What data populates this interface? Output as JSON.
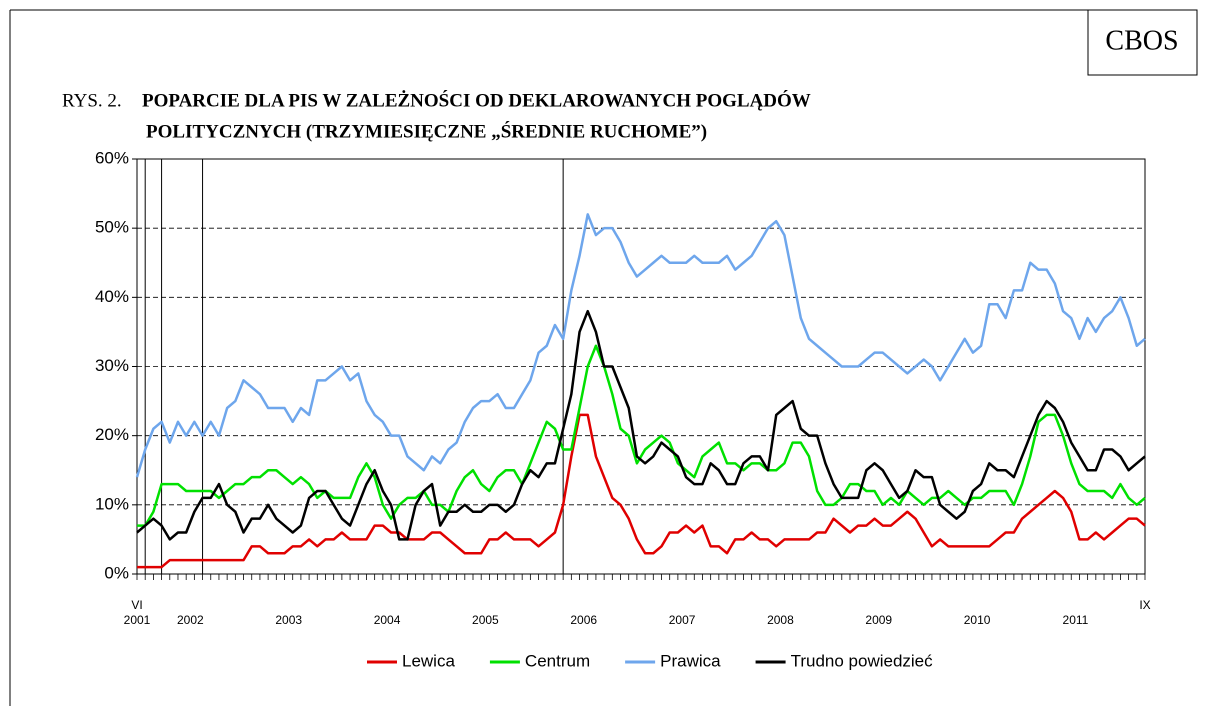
{
  "source": "CBOS",
  "chart_data": {
    "type": "line",
    "figure_label": "RYS. 2.",
    "title_lines": [
      "POPARCIE DLA PIS W ZALEŻNOŚCI OD DEKLAROWANYCH POGLĄDÓW",
      "POLITYCZNYCH (TRZYMIESIĘCZNE „ŚREDNIE RUCHOME”)"
    ],
    "categories": [
      "2001",
      null,
      null,
      null,
      null,
      null,
      null,
      "2002",
      null,
      null,
      null,
      null,
      null,
      null,
      null,
      null,
      null,
      null,
      null,
      "2003",
      null,
      null,
      null,
      null,
      null,
      null,
      null,
      null,
      null,
      null,
      null,
      "2004",
      null,
      null,
      null,
      null,
      null,
      null,
      null,
      null,
      null,
      null,
      null,
      "2005",
      null,
      null,
      null,
      null,
      null,
      null,
      null,
      null,
      null,
      null,
      null,
      "2006",
      null,
      null,
      null,
      null,
      null,
      null,
      null,
      null,
      null,
      null,
      null,
      "2007",
      null,
      null,
      null,
      null,
      null,
      null,
      null,
      null,
      null,
      null,
      null,
      "2008",
      null,
      null,
      null,
      null,
      null,
      null,
      null,
      null,
      null,
      null,
      null,
      "2009",
      null,
      null,
      null,
      null,
      null,
      null,
      null,
      null,
      null,
      null,
      null,
      "2010",
      null,
      null,
      null,
      null,
      null,
      null,
      null,
      null,
      null,
      null,
      null,
      "2011",
      null,
      null,
      null,
      null,
      null,
      null,
      null,
      null
    ],
    "months": [
      "VI",
      null,
      null,
      null,
      null,
      null,
      null,
      null,
      null,
      null,
      null,
      null,
      null,
      null,
      null,
      null,
      null,
      null,
      null,
      null,
      null,
      null,
      null,
      null,
      null,
      null,
      null,
      null,
      null,
      null,
      null,
      null,
      null,
      null,
      null,
      null,
      null,
      null,
      null,
      null,
      null,
      null,
      null,
      null,
      null,
      null,
      null,
      null,
      null,
      null,
      null,
      null,
      null,
      null,
      null,
      null,
      null,
      null,
      null,
      null,
      null,
      null,
      null,
      null,
      null,
      null,
      null,
      null,
      null,
      null,
      null,
      null,
      null,
      null,
      null,
      null,
      null,
      null,
      null,
      null,
      null,
      null,
      null,
      null,
      null,
      null,
      null,
      null,
      null,
      null,
      null,
      null,
      null,
      null,
      null,
      null,
      null,
      null,
      null,
      null,
      null,
      null,
      null,
      null,
      null,
      null,
      null,
      null,
      null,
      null,
      null,
      null,
      null,
      null,
      null,
      null,
      null,
      null,
      null,
      null,
      null,
      null,
      null,
      "IX"
    ],
    "event_lines": [
      0,
      1,
      3,
      8,
      52
    ],
    "ylim": [
      0,
      60
    ],
    "yticks": [
      {
        "value": 0,
        "label": "0%"
      },
      {
        "value": 10,
        "label": "10%"
      },
      {
        "value": 20,
        "label": "20%"
      },
      {
        "value": 30,
        "label": "30%"
      },
      {
        "value": 40,
        "label": "40%"
      },
      {
        "value": 50,
        "label": "50%"
      },
      {
        "value": 60,
        "label": "60%"
      }
    ],
    "grid": true,
    "series": [
      {
        "name": "Lewica",
        "color": "#e00000",
        "values": [
          1,
          1,
          1,
          1,
          2,
          2,
          2,
          2,
          2,
          2,
          2,
          2,
          2,
          2,
          4,
          4,
          3,
          3,
          3,
          4,
          4,
          5,
          4,
          5,
          5,
          6,
          5,
          5,
          5,
          7,
          7,
          6,
          6,
          5,
          5,
          5,
          6,
          6,
          5,
          4,
          3,
          3,
          3,
          5,
          5,
          6,
          5,
          5,
          5,
          4,
          5,
          6,
          10,
          17,
          23,
          23,
          17,
          14,
          11,
          10,
          8,
          5,
          3,
          3,
          4,
          6,
          6,
          7,
          6,
          7,
          4,
          4,
          3,
          5,
          5,
          6,
          5,
          5,
          4,
          5,
          5,
          5,
          5,
          6,
          6,
          8,
          7,
          6,
          7,
          7,
          8,
          7,
          7,
          8,
          9,
          8,
          6,
          4,
          5,
          4,
          4,
          4,
          4,
          4,
          4,
          5,
          6,
          6,
          8,
          9,
          10,
          11,
          12,
          11,
          9,
          5,
          5,
          6,
          5,
          6,
          7,
          8,
          8,
          7
        ]
      },
      {
        "name": "Centrum",
        "color": "#00e000",
        "values": [
          7,
          7,
          9,
          13,
          13,
          13,
          12,
          12,
          12,
          12,
          11,
          12,
          13,
          13,
          14,
          14,
          15,
          15,
          14,
          13,
          14,
          13,
          11,
          12,
          11,
          11,
          11,
          14,
          16,
          14,
          10,
          8,
          10,
          11,
          11,
          12,
          10,
          10,
          9,
          12,
          14,
          15,
          13,
          12,
          14,
          15,
          15,
          13,
          16,
          19,
          22,
          21,
          18,
          18,
          24,
          30,
          33,
          30,
          26,
          21,
          20,
          16,
          18,
          19,
          20,
          19,
          16,
          15,
          14,
          17,
          18,
          19,
          16,
          16,
          15,
          16,
          16,
          15,
          15,
          16,
          19,
          19,
          17,
          12,
          10,
          10,
          11,
          13,
          13,
          12,
          12,
          10,
          11,
          10,
          12,
          11,
          10,
          11,
          11,
          12,
          11,
          10,
          11,
          11,
          12,
          12,
          12,
          10,
          13,
          17,
          22,
          23,
          23,
          20,
          16,
          13,
          12,
          12,
          12,
          11,
          13,
          11,
          10,
          11
        ]
      },
      {
        "name": "Prawica",
        "color": "#6ea6ec",
        "values": [
          14,
          18,
          21,
          22,
          19,
          22,
          20,
          22,
          20,
          22,
          20,
          24,
          25,
          28,
          27,
          26,
          24,
          24,
          24,
          22,
          24,
          23,
          28,
          28,
          29,
          30,
          28,
          29,
          25,
          23,
          22,
          20,
          20,
          17,
          16,
          15,
          17,
          16,
          18,
          19,
          22,
          24,
          25,
          25,
          26,
          24,
          24,
          26,
          28,
          32,
          33,
          36,
          34,
          41,
          46,
          52,
          49,
          50,
          50,
          48,
          45,
          43,
          44,
          45,
          46,
          45,
          45,
          45,
          46,
          45,
          45,
          45,
          46,
          44,
          45,
          46,
          48,
          50,
          51,
          49,
          43,
          37,
          34,
          33,
          32,
          31,
          30,
          30,
          30,
          31,
          32,
          32,
          31,
          30,
          29,
          30,
          31,
          30,
          28,
          30,
          32,
          34,
          32,
          33,
          39,
          39,
          37,
          41,
          41,
          45,
          44,
          44,
          42,
          38,
          37,
          34,
          37,
          35,
          37,
          38,
          40,
          37,
          33,
          34
        ]
      },
      {
        "name": "Trudno powiedzieć",
        "color": "#000000",
        "values": [
          6,
          7,
          8,
          7,
          5,
          6,
          6,
          9,
          11,
          11,
          13,
          10,
          9,
          6,
          8,
          8,
          10,
          8,
          7,
          6,
          7,
          11,
          12,
          12,
          10,
          8,
          7,
          10,
          13,
          15,
          12,
          10,
          5,
          5,
          10,
          12,
          13,
          7,
          9,
          9,
          10,
          9,
          9,
          10,
          10,
          9,
          10,
          13,
          15,
          14,
          16,
          16,
          21,
          26,
          35,
          38,
          35,
          30,
          30,
          27,
          24,
          17,
          16,
          17,
          19,
          18,
          17,
          14,
          13,
          13,
          16,
          15,
          13,
          13,
          16,
          17,
          17,
          15,
          23,
          24,
          25,
          21,
          20,
          20,
          16,
          13,
          11,
          11,
          11,
          15,
          16,
          15,
          13,
          11,
          12,
          15,
          14,
          14,
          10,
          9,
          8,
          9,
          12,
          13,
          16,
          15,
          15,
          14,
          17,
          20,
          23,
          25,
          24,
          22,
          19,
          17,
          15,
          15,
          18,
          18,
          17,
          15,
          16,
          17
        ]
      }
    ]
  }
}
